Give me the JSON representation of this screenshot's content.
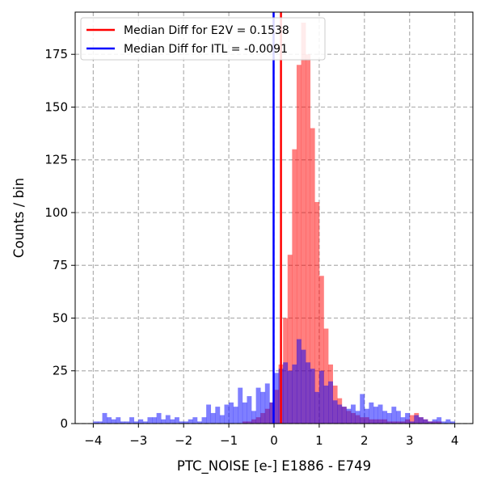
{
  "chart_data": {
    "type": "histogram",
    "xlabel": "PTC_NOISE [e-] E1886 - E749",
    "ylabel": "Counts / bin",
    "xlim": [
      -4.4,
      4.4
    ],
    "ylim": [
      0,
      195
    ],
    "xticks": [
      -4,
      -3,
      -2,
      -1,
      0,
      1,
      2,
      3,
      4
    ],
    "xtick_labels": [
      "−4",
      "−3",
      "−2",
      "−1",
      "0",
      "1",
      "2",
      "3",
      "4"
    ],
    "yticks": [
      0,
      25,
      50,
      75,
      100,
      125,
      150,
      175
    ],
    "ytick_labels": [
      "0",
      "25",
      "50",
      "75",
      "100",
      "125",
      "150",
      "175"
    ],
    "grid": true,
    "legend_position": "top-left",
    "bin_start": -4.0,
    "bin_width": 0.1,
    "series": [
      {
        "name": "E2V",
        "color": "#ff0000",
        "alpha": 0.5,
        "counts": [
          0,
          0,
          0,
          0,
          0,
          0,
          0,
          0,
          0,
          0,
          0,
          0,
          0,
          0,
          0,
          0,
          0,
          0,
          0,
          0,
          0,
          0,
          0,
          0,
          0,
          0,
          0,
          0,
          0,
          0,
          0,
          0,
          0,
          1,
          1,
          2,
          3,
          5,
          7,
          10,
          16,
          28,
          50,
          80,
          130,
          170,
          190,
          175,
          140,
          105,
          70,
          45,
          28,
          18,
          12,
          8,
          6,
          5,
          4,
          3,
          3,
          2,
          2,
          2,
          2,
          1,
          1,
          1,
          1,
          2,
          4,
          5,
          3,
          2,
          1,
          1,
          1,
          0,
          0,
          0
        ]
      },
      {
        "name": "ITL",
        "color": "#0000ff",
        "alpha": 0.5,
        "counts": [
          1,
          1,
          5,
          3,
          2,
          3,
          1,
          1,
          3,
          1,
          2,
          1,
          3,
          3,
          5,
          2,
          4,
          2,
          3,
          1,
          1,
          2,
          3,
          1,
          3,
          9,
          5,
          8,
          4,
          9,
          10,
          8,
          17,
          10,
          13,
          6,
          17,
          15,
          19,
          10,
          24,
          26,
          29,
          25,
          28,
          40,
          35,
          29,
          26,
          15,
          25,
          18,
          20,
          11,
          9,
          8,
          7,
          9,
          6,
          14,
          7,
          10,
          8,
          9,
          6,
          5,
          8,
          6,
          3,
          5,
          1,
          4,
          3,
          2,
          1,
          2,
          3,
          1,
          2,
          1
        ]
      }
    ],
    "vlines": [
      {
        "name": "E2V",
        "x": 0.1538,
        "color": "#ff0000"
      },
      {
        "name": "ITL",
        "x": -0.0091,
        "color": "#0000ff"
      }
    ],
    "legend": [
      {
        "label": "Median Diff for E2V = 0.1538",
        "color": "#ff0000"
      },
      {
        "label": "Median Diff for ITL = -0.0091",
        "color": "#0000ff"
      }
    ]
  }
}
